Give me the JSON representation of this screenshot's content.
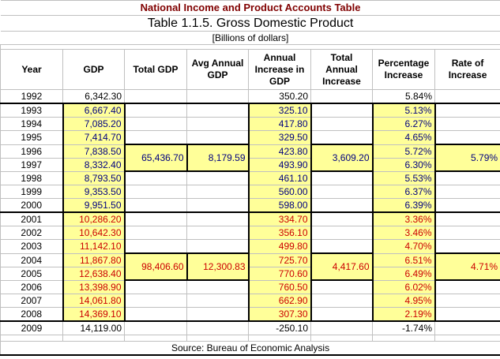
{
  "title": "National Income and Product Accounts Table",
  "subtitle": "Table 1.1.5. Gross Domestic Product",
  "units": "[Billions of dollars]",
  "headers": [
    "Year",
    "GDP",
    "Total GDP",
    "Avg Annual GDP",
    "Annual Increase in GDP",
    "Total Annual Increase",
    "Percentage Increase",
    "Rate of Increase"
  ],
  "rows": [
    {
      "year": "1992",
      "gdp": "6,342.30",
      "inc": "350.20",
      "pct": "5.84%"
    },
    {
      "year": "1993",
      "gdp": "6,667.40",
      "inc": "325.10",
      "pct": "5.13%"
    },
    {
      "year": "1994",
      "gdp": "7,085.20",
      "inc": "417.80",
      "pct": "6.27%"
    },
    {
      "year": "1995",
      "gdp": "7,414.70",
      "inc": "329.50",
      "pct": "4.65%"
    },
    {
      "year": "1996",
      "gdp": "7,838.50",
      "inc": "423.80",
      "pct": "5.72%"
    },
    {
      "year": "1997",
      "gdp": "8,332.40",
      "inc": "493.90",
      "pct": "6.30%"
    },
    {
      "year": "1998",
      "gdp": "8,793.50",
      "inc": "461.10",
      "pct": "5.53%"
    },
    {
      "year": "1999",
      "gdp": "9,353.50",
      "inc": "560.00",
      "pct": "6.37%"
    },
    {
      "year": "2000",
      "gdp": "9,951.50",
      "inc": "598.00",
      "pct": "6.39%"
    },
    {
      "year": "2001",
      "gdp": "10,286.20",
      "inc": "334.70",
      "pct": "3.36%"
    },
    {
      "year": "2002",
      "gdp": "10,642.30",
      "inc": "356.10",
      "pct": "3.46%"
    },
    {
      "year": "2003",
      "gdp": "11,142.10",
      "inc": "499.80",
      "pct": "4.70%"
    },
    {
      "year": "2004",
      "gdp": "11,867.80",
      "inc": "725.70",
      "pct": "6.51%"
    },
    {
      "year": "2005",
      "gdp": "12,638.40",
      "inc": "770.60",
      "pct": "6.49%"
    },
    {
      "year": "2006",
      "gdp": "13,398.90",
      "inc": "760.50",
      "pct": "6.02%"
    },
    {
      "year": "2007",
      "gdp": "14,061.80",
      "inc": "662.90",
      "pct": "4.95%"
    },
    {
      "year": "2008",
      "gdp": "14,369.10",
      "inc": "307.30",
      "pct": "2.19%"
    },
    {
      "year": "2009",
      "gdp": "14,119.00",
      "inc": "-250.10",
      "pct": "-1.74%"
    }
  ],
  "summaries": [
    {
      "total_gdp": "65,436.70",
      "avg_gdp": "8,179.59",
      "total_inc": "3,609.20",
      "rate": "5.79%"
    },
    {
      "total_gdp": "98,406.60",
      "avg_gdp": "12,300.83",
      "total_inc": "4,417.60",
      "rate": "4.71%"
    }
  ],
  "source": "Source: Bureau of Economic Analysis",
  "colors": {
    "highlight": "#ffff99",
    "period1_text": "#000080",
    "period2_text": "#cc0000",
    "title": "#800000"
  }
}
